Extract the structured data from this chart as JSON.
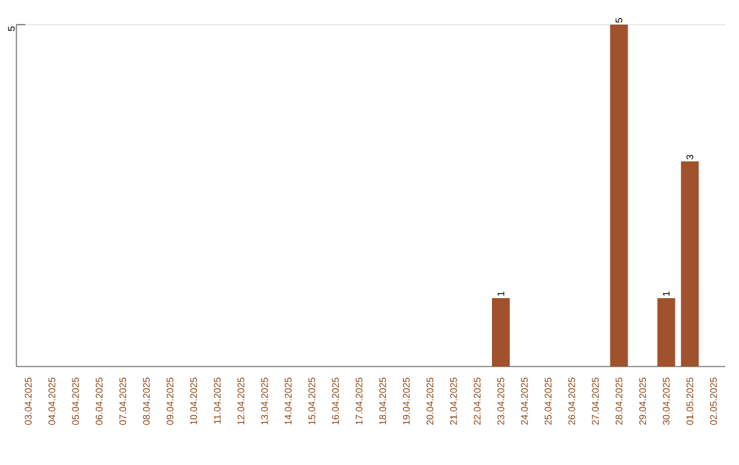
{
  "chart_data": {
    "type": "bar",
    "categories": [
      "03.04.2025",
      "04.04.2025",
      "05.04.2025",
      "06.04.2025",
      "07.04.2025",
      "08.04.2025",
      "09.04.2025",
      "10.04.2025",
      "11.04.2025",
      "12.04.2025",
      "13.04.2025",
      "14.04.2025",
      "15.04.2025",
      "16.04.2025",
      "17.04.2025",
      "18.04.2025",
      "19.04.2025",
      "20.04.2025",
      "21.04.2025",
      "22.04.2025",
      "23.04.2025",
      "24.04.2025",
      "25.04.2025",
      "26.04.2025",
      "27.04.2025",
      "28.04.2025",
      "29.04.2025",
      "30.04.2025",
      "01.05.2025",
      "02.05.2025"
    ],
    "values": [
      null,
      null,
      null,
      null,
      null,
      null,
      null,
      null,
      null,
      null,
      null,
      null,
      null,
      null,
      null,
      null,
      null,
      null,
      null,
      null,
      1,
      null,
      null,
      null,
      null,
      5,
      null,
      1,
      3,
      null
    ],
    "color": "#a0522d",
    "ref_lines": [
      {
        "axis": "y",
        "value": 5,
        "label": "5",
        "color": "#cccccc"
      }
    ],
    "data_labels": true
  }
}
